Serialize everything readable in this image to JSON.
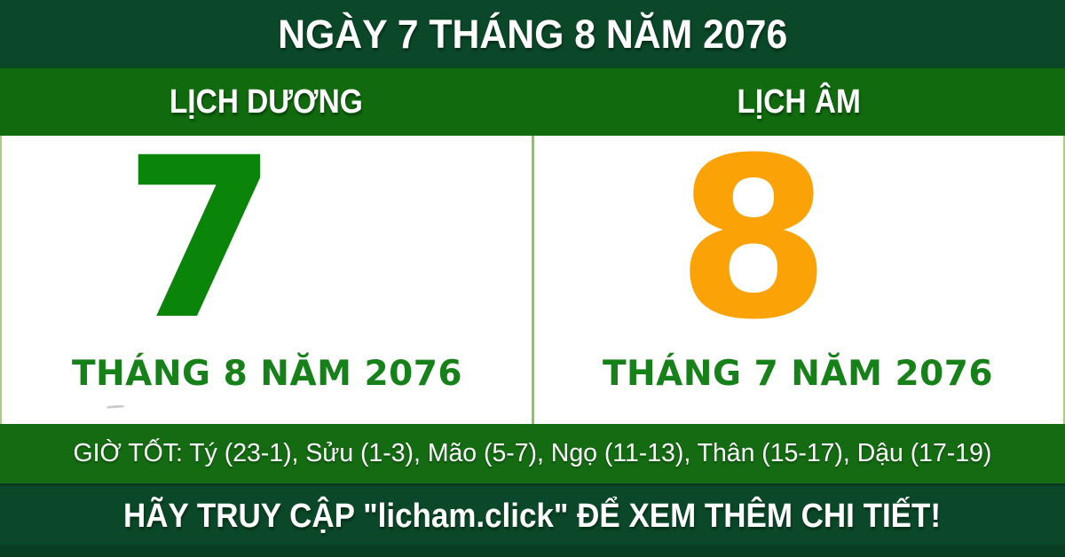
{
  "title_bar": {
    "title": "NGÀY 7 THÁNG 8 NĂM 2076"
  },
  "calendar": {
    "solar": {
      "header": "LỊCH DƯƠNG",
      "day": "7",
      "subtitle": "THÁNG 8 NĂM 2076"
    },
    "lunar": {
      "header": "LỊCH ÂM",
      "day": "8",
      "subtitle": "THÁNG 7 NĂM 2076"
    }
  },
  "good_hours": {
    "label": "GIỜ TỐT",
    "items": [
      {
        "name": "Tý",
        "range": "23-1"
      },
      {
        "name": "Sửu",
        "range": "1-3"
      },
      {
        "name": "Mão",
        "range": "5-7"
      },
      {
        "name": "Ngọ",
        "range": "11-13"
      },
      {
        "name": "Thân",
        "range": "15-17"
      },
      {
        "name": "Dậu",
        "range": "17-19"
      }
    ],
    "text": "GIỜ TỐT: Tý (23-1), Sửu (1-3), Mão (5-7), Ngọ (11-13), Thân (15-17), Dậu (17-19)"
  },
  "footer": {
    "site": "licham.click",
    "text": "HÃY TRUY CẬP \"licham.click\" ĐỂ XEM THÊM CHI TIẾT!"
  },
  "colors": {
    "dark_green": "#0B4829",
    "green": "#116B0E",
    "hours_green": "#146B12",
    "day_green": "#0A850A",
    "day_orange": "#FBA306",
    "text_green": "#168118",
    "divider_green": "#8CC65A",
    "edge_green": "#A8CE7F",
    "footer_strip": "#083C20"
  }
}
